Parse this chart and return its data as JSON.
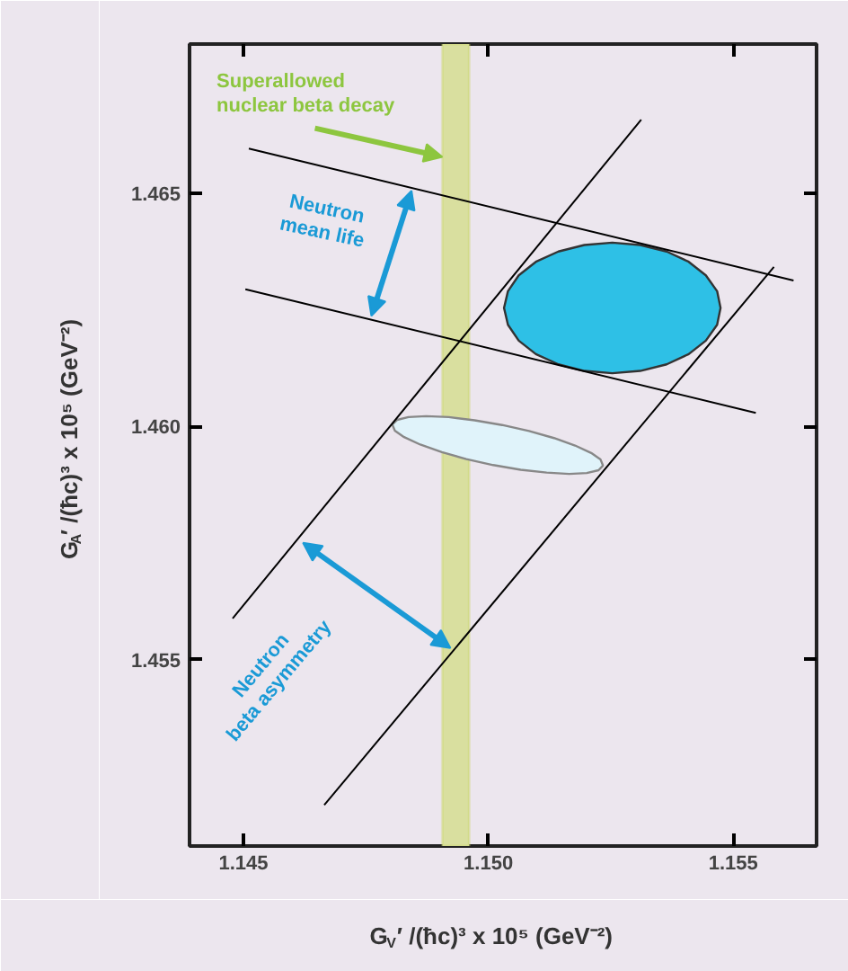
{
  "chart_data": {
    "type": "line",
    "xlabel": "G$_{V}$′ /(ħc)³ x 10⁵ (GeV⁻²)",
    "ylabel": "G$_{A}$′ /(ħc)³ x 10⁵ (GeV⁻²)",
    "xlim": [
      1.1439,
      1.1567
    ],
    "ylim": [
      1.451,
      1.4682
    ],
    "xticks": [
      1.145,
      {
        "value": 1.15,
        "label": "1.150"
      },
      1.155
    ],
    "yticks": [
      1.455,
      {
        "value": 1.46,
        "label": "1.460"
      },
      1.465
    ],
    "grid": false,
    "marker": "none",
    "line_style": "solid",
    "bands": [
      {
        "axis": "x",
        "from": 1.14906,
        "to": 1.14961,
        "color": "#d9df9f"
      }
    ],
    "series": [
      {
        "color": "#000000",
        "x": [
          1.14511,
          1.15623
        ],
        "values": [
          1.46596,
          1.46313
        ]
      },
      {
        "color": "#000000",
        "x": [
          1.14504,
          1.15546
        ],
        "values": [
          1.46294,
          1.46029
        ]
      },
      {
        "color": "#000000",
        "x": [
          1.14478,
          1.15312
        ],
        "values": [
          1.45588,
          1.46658
        ]
      },
      {
        "color": "#000000",
        "x": [
          1.14665,
          1.15583
        ],
        "values": [
          1.45188,
          1.46342
        ]
      },
      {
        "type": "area",
        "color": "#2ec0e6",
        "x": [
          1.15474,
          1.15467,
          1.15444,
          1.15409,
          1.15364,
          1.1531,
          1.15253,
          1.15196,
          1.15143,
          1.15097,
          1.15062,
          1.1504,
          1.15032,
          1.1504,
          1.15062,
          1.15097,
          1.15143,
          1.15196,
          1.15253,
          1.1531,
          1.15364,
          1.15409,
          1.15444,
          1.15467
        ],
        "values": [
          1.46254,
          1.4629,
          1.46324,
          1.46353,
          1.46375,
          1.46389,
          1.46394,
          1.46389,
          1.46375,
          1.46353,
          1.46324,
          1.4629,
          1.46254,
          1.46218,
          1.46184,
          1.46155,
          1.46133,
          1.46119,
          1.46114,
          1.46119,
          1.46133,
          1.46155,
          1.46184,
          1.46218
        ]
      },
      {
        "type": "area",
        "color": "#e0f3fa",
        "x": [
          1.15234,
          1.15225,
          1.15201,
          1.15165,
          1.15119,
          1.15066,
          1.1501,
          1.14955,
          1.14905,
          1.14861,
          1.14828,
          1.14809,
          1.14804,
          1.14814,
          1.14837,
          1.14873,
          1.14919,
          1.14972,
          1.15028,
          1.15083,
          1.15134,
          1.15177,
          1.1521,
          1.15229
        ],
        "values": [
          1.45916,
          1.45906,
          1.459,
          1.45898,
          1.45901,
          1.45907,
          1.45917,
          1.4593,
          1.45945,
          1.45961,
          1.45977,
          1.45991,
          1.46004,
          1.46014,
          1.4602,
          1.46022,
          1.4602,
          1.46013,
          1.46003,
          1.4599,
          1.45975,
          1.45959,
          1.45943,
          1.45929
        ]
      }
    ],
    "annotations": [
      {
        "text": "Superallowed\nnuclear beta decay",
        "x": 1.14906,
        "y": 1.46578
      },
      "Neutron\nmean life",
      "Neutron\nbeta asymmetry"
    ]
  }
}
